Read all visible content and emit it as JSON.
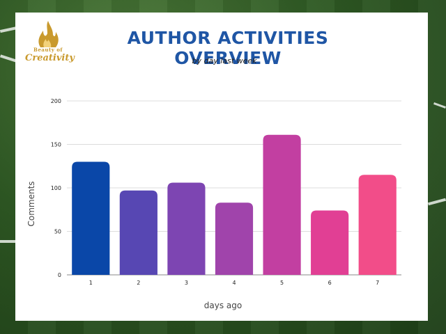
{
  "logo": {
    "line1": "Beauty of",
    "line2": "Creativity"
  },
  "chart_data": {
    "type": "bar",
    "title": "AUTHOR ACTIVITIES OVERVIEW",
    "subtitle": "by day last week",
    "xlabel": "days ago",
    "ylabel": "Comments",
    "categories": [
      "1",
      "2",
      "3",
      "4",
      "5",
      "6",
      "7"
    ],
    "values": [
      130,
      97,
      106,
      83,
      161,
      74,
      115
    ],
    "ylim": [
      0,
      200
    ],
    "yticks": [
      0,
      50,
      100,
      150,
      200
    ],
    "grid": true,
    "colors": [
      "#0a47a8",
      "#5747b3",
      "#7d45b2",
      "#a044ab",
      "#c23fa1",
      "#e13f94",
      "#f24d89"
    ]
  }
}
